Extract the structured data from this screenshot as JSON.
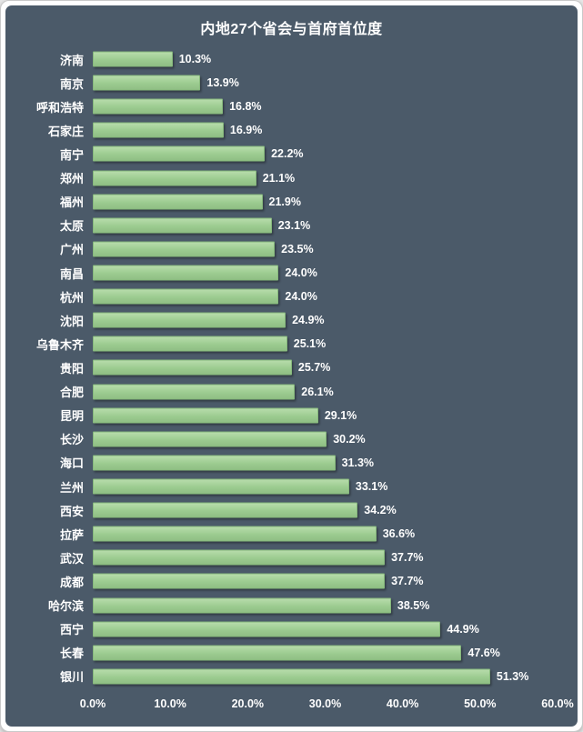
{
  "frame": {
    "background_color": "#4b5a69",
    "bar_color": "#9ccb90",
    "text_color": "#ffffff"
  },
  "chart_data": {
    "type": "bar",
    "orientation": "horizontal",
    "title": "内地27个省会与首府首位度",
    "categories": [
      "济南",
      "南京",
      "呼和浩特",
      "石家庄",
      "南宁",
      "郑州",
      "福州",
      "太原",
      "广州",
      "南昌",
      "杭州",
      "沈阳",
      "乌鲁木齐",
      "贵阳",
      "合肥",
      "昆明",
      "长沙",
      "海口",
      "兰州",
      "西安",
      "拉萨",
      "武汉",
      "成都",
      "哈尔滨",
      "西宁",
      "长春",
      "银川"
    ],
    "values": [
      10.3,
      13.9,
      16.8,
      16.9,
      22.2,
      21.1,
      21.9,
      23.1,
      23.5,
      24.0,
      24.0,
      24.9,
      25.1,
      25.7,
      26.1,
      29.1,
      30.2,
      31.3,
      33.1,
      34.2,
      36.6,
      37.7,
      37.7,
      38.5,
      44.9,
      47.6,
      51.3
    ],
    "value_label_suffix": "%",
    "xlim": [
      0,
      60
    ],
    "x_ticks": [
      "0.0%",
      "10.0%",
      "20.0%",
      "30.0%",
      "40.0%",
      "50.0%",
      "60.0%"
    ],
    "grid": false,
    "legend": false
  }
}
